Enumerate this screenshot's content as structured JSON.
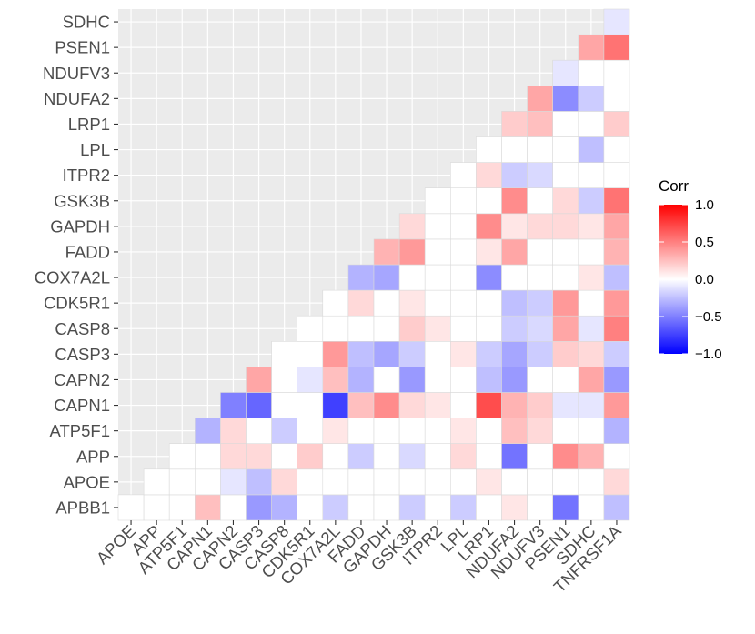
{
  "chart_data": {
    "type": "heatmap",
    "title": "",
    "xlabel": "",
    "ylabel": "",
    "genes": [
      "APOE",
      "APP",
      "ATP5F1",
      "CAPN1",
      "CAPN2",
      "CASP3",
      "CASP8",
      "CDK5R1",
      "COX7A2L",
      "FADD",
      "GAPDH",
      "GSK3B",
      "ITPR2",
      "LPL",
      "LRP1",
      "NDUFA2",
      "NDUFV3",
      "PSEN1",
      "SDHC",
      "TNFRSF1A"
    ],
    "x_labels": [
      "APOE",
      "APP",
      "ATP5F1",
      "CAPN1",
      "CAPN2",
      "CASP3",
      "CASP8",
      "CDK5R1",
      "COX7A2L",
      "FADD",
      "GAPDH",
      "GSK3B",
      "ITPR2",
      "LPL",
      "LRP1",
      "NDUFA2",
      "NDUFV3",
      "PSEN1",
      "SDHC",
      "TNFRSF1A"
    ],
    "y_labels": [
      "APBB1",
      "APOE",
      "APP",
      "ATP5F1",
      "CAPN1",
      "CAPN2",
      "CASP3",
      "CASP8",
      "CDK5R1",
      "COX7A2L",
      "FADD",
      "GAPDH",
      "GSK3B",
      "ITPR2",
      "LPL",
      "LRP1",
      "NDUFA2",
      "NDUFV3",
      "PSEN1",
      "SDHC"
    ],
    "values": [
      [
        0,
        0,
        0,
        0.25,
        0,
        -0.4,
        -0.3,
        0,
        -0.2,
        0,
        0,
        -0.2,
        0,
        -0.2,
        0,
        0.1,
        0,
        -0.55,
        0,
        -0.25
      ],
      [
        null,
        0,
        0,
        0,
        -0.1,
        -0.25,
        0.15,
        0,
        0,
        0,
        0,
        0,
        0,
        0,
        0.1,
        0,
        0,
        0,
        0,
        0.15
      ],
      [
        null,
        null,
        0,
        0,
        0.15,
        0.15,
        0,
        0.2,
        0,
        -0.2,
        0,
        -0.15,
        0,
        0.15,
        0,
        -0.55,
        0,
        0.45,
        0.3,
        0
      ],
      [
        null,
        null,
        null,
        -0.3,
        0.15,
        0,
        -0.2,
        0,
        0.1,
        0,
        0,
        0,
        0,
        0.1,
        0,
        0.25,
        0.15,
        0,
        0,
        -0.3
      ],
      [
        null,
        null,
        null,
        null,
        -0.5,
        -0.6,
        0,
        0,
        -0.75,
        0.25,
        0.45,
        0.15,
        0.1,
        0,
        0.7,
        0.3,
        0.2,
        -0.1,
        -0.1,
        0.4
      ],
      [
        null,
        null,
        null,
        null,
        null,
        0.35,
        0,
        -0.1,
        0.25,
        -0.3,
        0,
        -0.4,
        0,
        0,
        -0.25,
        -0.4,
        0,
        0,
        0.35,
        -0.4
      ],
      [
        null,
        null,
        null,
        null,
        null,
        null,
        0,
        0,
        0.4,
        -0.25,
        -0.35,
        -0.2,
        0,
        0.1,
        -0.2,
        -0.35,
        -0.2,
        0.2,
        0.15,
        -0.2
      ],
      [
        null,
        null,
        null,
        null,
        null,
        null,
        null,
        0,
        0,
        0,
        0,
        0.2,
        0.1,
        0,
        0,
        -0.2,
        -0.15,
        0.35,
        -0.1,
        0.5
      ],
      [
        null,
        null,
        null,
        null,
        null,
        null,
        null,
        null,
        0,
        0.15,
        0,
        0.1,
        0,
        0,
        0,
        -0.25,
        -0.2,
        0.4,
        0,
        0.4
      ],
      [
        null,
        null,
        null,
        null,
        null,
        null,
        null,
        null,
        null,
        -0.3,
        -0.35,
        0,
        0,
        0,
        -0.45,
        0,
        0,
        0,
        0.1,
        -0.25
      ],
      [
        null,
        null,
        null,
        null,
        null,
        null,
        null,
        null,
        null,
        null,
        0.3,
        0.4,
        0,
        0,
        0.1,
        0.35,
        0,
        0,
        0,
        0.3
      ],
      [
        null,
        null,
        null,
        null,
        null,
        null,
        null,
        null,
        null,
        null,
        null,
        0.15,
        0,
        0,
        0.45,
        0.1,
        0.15,
        0.15,
        0.1,
        0.35
      ],
      [
        null,
        null,
        null,
        null,
        null,
        null,
        null,
        null,
        null,
        null,
        null,
        null,
        0,
        0,
        0,
        0.45,
        0,
        0.15,
        -0.2,
        0.55
      ],
      [
        null,
        null,
        null,
        null,
        null,
        null,
        null,
        null,
        null,
        null,
        null,
        null,
        null,
        0,
        0.15,
        -0.2,
        -0.15,
        0,
        0,
        0
      ],
      [
        null,
        null,
        null,
        null,
        null,
        null,
        null,
        null,
        null,
        null,
        null,
        null,
        null,
        null,
        0,
        0,
        0,
        0,
        -0.25,
        0
      ],
      [
        null,
        null,
        null,
        null,
        null,
        null,
        null,
        null,
        null,
        null,
        null,
        null,
        null,
        null,
        null,
        0.2,
        0.25,
        0,
        0,
        0.2
      ],
      [
        null,
        null,
        null,
        null,
        null,
        null,
        null,
        null,
        null,
        null,
        null,
        null,
        null,
        null,
        null,
        null,
        0.35,
        -0.45,
        -0.2,
        0
      ],
      [
        null,
        null,
        null,
        null,
        null,
        null,
        null,
        null,
        null,
        null,
        null,
        null,
        null,
        null,
        null,
        null,
        null,
        -0.1,
        0,
        0
      ],
      [
        null,
        null,
        null,
        null,
        null,
        null,
        null,
        null,
        null,
        null,
        null,
        null,
        null,
        null,
        null,
        null,
        null,
        null,
        0.35,
        0.55
      ],
      [
        null,
        null,
        null,
        null,
        null,
        null,
        null,
        null,
        null,
        null,
        null,
        null,
        null,
        null,
        null,
        null,
        null,
        null,
        null,
        -0.1
      ]
    ],
    "legend": {
      "title": "Corr",
      "min": -1.0,
      "max": 1.0,
      "ticks": [
        1.0,
        0.5,
        0.0,
        -0.5,
        -1.0
      ],
      "tick_labels": [
        "1.0",
        "0.5",
        "0.0",
        "−0.5",
        "−1.0"
      ],
      "low_color": "#0000ff",
      "mid_color": "#ffffff",
      "high_color": "#ff0000",
      "placement": "right"
    },
    "panel_color": "#ebebeb",
    "grid_color": "#ffffff",
    "tile_border_color": "#d9d9d9",
    "axis_text_color": "#4d4d4d",
    "grid": true
  }
}
